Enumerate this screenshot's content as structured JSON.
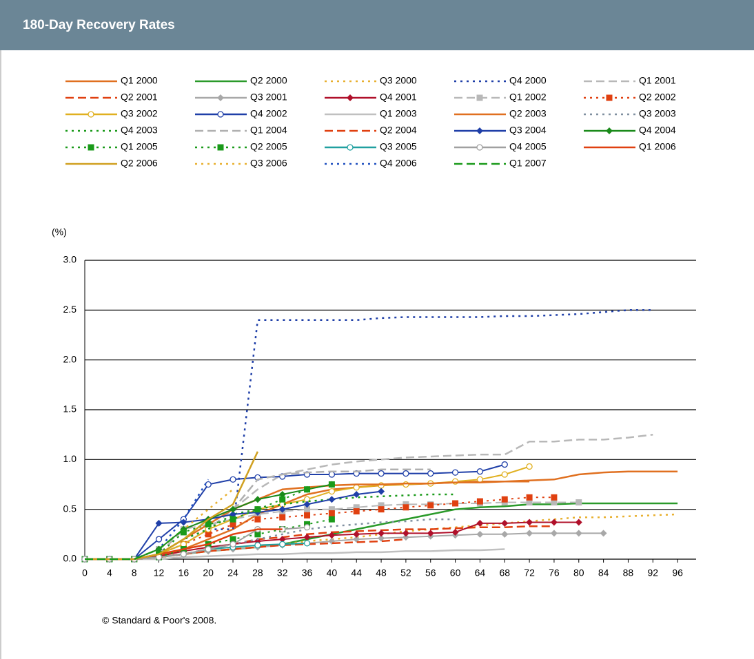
{
  "chart_data": {
    "type": "line",
    "title": "180-Day Recovery Rates",
    "y_axis_label": "(%)",
    "footnote": "© Standard & Poor's 2008.",
    "xlim": [
      0,
      99
    ],
    "xticks": [
      0,
      4,
      8,
      12,
      16,
      20,
      24,
      28,
      32,
      36,
      40,
      44,
      48,
      52,
      56,
      60,
      64,
      68,
      72,
      76,
      80,
      84,
      88,
      92,
      96
    ],
    "ylim": [
      0,
      3
    ],
    "yticks": [
      {
        "value": 0,
        "label": "0.0"
      },
      0.5,
      {
        "value": 1,
        "label": "1.0"
      },
      1.5,
      {
        "value": 2,
        "label": "2.0"
      },
      2.5,
      {
        "value": 3,
        "label": "3.0"
      }
    ],
    "grid": true,
    "x": [
      0,
      4,
      8,
      12,
      16,
      20,
      24,
      28,
      32,
      36,
      40,
      44,
      48,
      52,
      56,
      60,
      64,
      68,
      72,
      76,
      80,
      84,
      88,
      92,
      96
    ],
    "series": [
      {
        "name": "Q1 2000",
        "color": "#e07020",
        "dash": "solid",
        "values": [
          0,
          0,
          0,
          0.03,
          0.1,
          0.2,
          0.3,
          0.45,
          0.55,
          0.65,
          0.7,
          0.72,
          0.74,
          0.75,
          0.76,
          0.77,
          0.78,
          0.78,
          0.79,
          0.8,
          0.85,
          0.87,
          0.88,
          0.88,
          0.88
        ]
      },
      {
        "name": "Q2 2000",
        "color": "#2a9a2a",
        "dash": "solid",
        "values": [
          0,
          0,
          0,
          0.02,
          0.05,
          0.08,
          0.1,
          0.12,
          0.15,
          0.2,
          0.25,
          0.3,
          0.35,
          0.4,
          0.45,
          0.5,
          0.52,
          0.53,
          0.55,
          0.55,
          0.56,
          0.56,
          0.56,
          0.56,
          0.56
        ]
      },
      {
        "name": "Q3 2000",
        "color": "#e8b030",
        "dash": "dotted",
        "values": [
          0,
          0,
          0,
          0.02,
          0.05,
          0.08,
          0.1,
          0.12,
          0.15,
          0.18,
          0.2,
          0.22,
          0.25,
          0.28,
          0.3,
          0.32,
          0.34,
          0.36,
          0.38,
          0.4,
          0.42,
          0.42,
          0.43,
          0.44,
          0.45
        ]
      },
      {
        "name": "Q4 2000",
        "color": "#1f3fa8",
        "dash": "dotted",
        "values": [
          0,
          0,
          0,
          0.05,
          0.2,
          0.3,
          0.3,
          2.4,
          2.4,
          2.4,
          2.4,
          2.4,
          2.42,
          2.43,
          2.43,
          2.43,
          2.43,
          2.44,
          2.44,
          2.45,
          2.46,
          2.48,
          2.5,
          2.5,
          null
        ]
      },
      {
        "name": "Q1 2001",
        "color": "#b8b8b8",
        "dash": "dashed",
        "values": [
          0,
          0,
          0,
          0.05,
          0.15,
          0.3,
          0.5,
          0.7,
          0.85,
          0.9,
          0.95,
          0.98,
          1.0,
          1.02,
          1.03,
          1.04,
          1.05,
          1.05,
          1.18,
          1.18,
          1.2,
          1.2,
          1.22,
          1.25,
          null
        ]
      },
      {
        "name": "Q2 2001",
        "color": "#e04010",
        "dash": "dashed",
        "values": [
          0,
          0,
          0,
          0.02,
          0.05,
          0.1,
          0.15,
          0.2,
          0.22,
          0.25,
          0.27,
          0.28,
          0.29,
          0.3,
          0.3,
          0.31,
          0.32,
          0.32,
          0.33,
          0.33,
          null,
          null,
          null,
          null,
          null
        ]
      },
      {
        "name": "Q3 2001",
        "color": "#a8a8a8",
        "dash": "solid",
        "marker": "diamond",
        "values": [
          0,
          0,
          0,
          0.02,
          0.05,
          0.08,
          0.1,
          0.12,
          0.14,
          0.16,
          0.18,
          0.2,
          0.21,
          0.22,
          0.23,
          0.24,
          0.25,
          0.25,
          0.26,
          0.26,
          0.26,
          0.26,
          null,
          null,
          null
        ]
      },
      {
        "name": "Q4 2001",
        "color": "#b0102a",
        "dash": "solid",
        "marker": "diamond",
        "values": [
          0,
          0,
          0,
          0.03,
          0.08,
          0.12,
          0.15,
          0.18,
          0.2,
          0.22,
          0.24,
          0.25,
          0.26,
          0.26,
          0.26,
          0.27,
          0.36,
          0.36,
          0.37,
          0.37,
          0.37,
          null,
          null,
          null,
          null
        ]
      },
      {
        "name": "Q1 2002",
        "color": "#b8b8b8",
        "dash": "dashed",
        "marker": "square",
        "values": [
          0,
          0,
          0,
          0.1,
          0.3,
          0.35,
          0.4,
          0.45,
          0.48,
          0.5,
          0.5,
          0.52,
          0.54,
          0.55,
          0.55,
          0.56,
          0.56,
          0.57,
          0.57,
          0.57,
          0.57,
          null,
          null,
          null,
          null
        ]
      },
      {
        "name": "Q2 2002",
        "color": "#e04010",
        "dash": "dotted",
        "marker": "square",
        "values": [
          0,
          0,
          0,
          0.05,
          0.15,
          0.25,
          0.35,
          0.4,
          0.42,
          0.44,
          0.46,
          0.48,
          0.5,
          0.52,
          0.54,
          0.56,
          0.58,
          0.6,
          0.62,
          0.62,
          null,
          null,
          null,
          null,
          null
        ]
      },
      {
        "name": "Q3 2002",
        "color": "#e0b020",
        "dash": "solid",
        "marker": "circle",
        "values": [
          0,
          0,
          0,
          0.05,
          0.15,
          0.3,
          0.4,
          0.5,
          0.55,
          0.6,
          0.68,
          0.72,
          0.74,
          0.75,
          0.76,
          0.78,
          0.8,
          0.85,
          0.93,
          null,
          null,
          null,
          null,
          null,
          null
        ]
      },
      {
        "name": "Q4 2002",
        "color": "#1f3fa8",
        "dash": "solid",
        "marker": "circle",
        "values": [
          0,
          0,
          0,
          0.2,
          0.4,
          0.75,
          0.8,
          0.82,
          0.83,
          0.85,
          0.85,
          0.86,
          0.86,
          0.86,
          0.86,
          0.87,
          0.88,
          0.95,
          null,
          null,
          null,
          null,
          null,
          null,
          null
        ]
      },
      {
        "name": "Q1 2003",
        "color": "#c0c0c0",
        "dash": "solid",
        "values": [
          0,
          0,
          0,
          0,
          0.02,
          0.03,
          0.04,
          0.05,
          0.05,
          0.06,
          0.06,
          0.07,
          0.07,
          0.08,
          0.08,
          0.09,
          0.09,
          0.1,
          null,
          null,
          null,
          null,
          null,
          null,
          null
        ]
      },
      {
        "name": "Q2 2003",
        "color": "#e07020",
        "dash": "solid",
        "values": [
          0,
          0,
          0,
          0.05,
          0.2,
          0.35,
          0.5,
          0.6,
          0.7,
          0.72,
          0.74,
          0.75,
          0.75,
          0.76,
          0.76,
          0.77,
          0.77,
          0.78,
          0.78,
          null,
          null,
          null,
          null,
          null,
          null
        ]
      },
      {
        "name": "Q3 2003",
        "color": "#8090a0",
        "dash": "dotted",
        "values": [
          0,
          0,
          0,
          0.02,
          0.05,
          0.1,
          0.15,
          0.2,
          0.25,
          0.3,
          0.33,
          0.35,
          0.37,
          0.38,
          0.4,
          0.4,
          null,
          null,
          null,
          null,
          null,
          null,
          null,
          null,
          null
        ]
      },
      {
        "name": "Q4 2003",
        "color": "#1a9a1a",
        "dash": "dotted",
        "values": [
          0,
          0,
          0,
          0.05,
          0.2,
          0.3,
          0.45,
          0.5,
          0.55,
          0.58,
          0.6,
          0.62,
          0.63,
          0.64,
          0.65,
          0.65,
          null,
          null,
          null,
          null,
          null,
          null,
          null,
          null,
          null
        ]
      },
      {
        "name": "Q1 2004",
        "color": "#b0b0b0",
        "dash": "dashed",
        "values": [
          0,
          0,
          0,
          0.05,
          0.3,
          0.4,
          0.5,
          0.8,
          0.85,
          0.87,
          0.88,
          0.88,
          0.9,
          0.9,
          0.9,
          null,
          null,
          null,
          null,
          null,
          null,
          null,
          null,
          null,
          null
        ]
      },
      {
        "name": "Q2 2004",
        "color": "#e04010",
        "dash": "dashed",
        "values": [
          0,
          0,
          0,
          0.02,
          0.05,
          0.08,
          0.1,
          0.12,
          0.14,
          0.15,
          0.16,
          0.17,
          0.18,
          0.2,
          null,
          null,
          null,
          null,
          null,
          null,
          null,
          null,
          null,
          null,
          null
        ]
      },
      {
        "name": "Q3 2004",
        "color": "#1f3fa8",
        "dash": "solid",
        "marker": "diamond",
        "values": [
          0,
          0,
          0,
          0.36,
          0.37,
          0.4,
          0.45,
          0.47,
          0.5,
          0.55,
          0.6,
          0.65,
          0.68,
          null,
          null,
          null,
          null,
          null,
          null,
          null,
          null,
          null,
          null,
          null,
          null
        ]
      },
      {
        "name": "Q4 2004",
        "color": "#1a8a1a",
        "dash": "solid",
        "marker": "diamond",
        "values": [
          0,
          0,
          0,
          0.1,
          0.3,
          0.4,
          0.5,
          0.6,
          0.65,
          0.7,
          0.75,
          null,
          null,
          null,
          null,
          null,
          null,
          null,
          null,
          null,
          null,
          null,
          null,
          null,
          null
        ]
      },
      {
        "name": "Q1 2005",
        "color": "#1a9a1a",
        "dash": "dotted",
        "marker": "square",
        "values": [
          0,
          0,
          0,
          0.05,
          0.27,
          0.35,
          0.4,
          0.5,
          0.6,
          0.7,
          0.75,
          null,
          null,
          null,
          null,
          null,
          null,
          null,
          null,
          null,
          null,
          null,
          null,
          null,
          null
        ]
      },
      {
        "name": "Q2 2005",
        "color": "#1a9a1a",
        "dash": "dotted",
        "marker": "square",
        "values": [
          0,
          0,
          0,
          0.02,
          0.1,
          0.15,
          0.2,
          0.25,
          0.3,
          0.35,
          0.4,
          null,
          null,
          null,
          null,
          null,
          null,
          null,
          null,
          null,
          null,
          null,
          null,
          null,
          null
        ]
      },
      {
        "name": "Q3 2005",
        "color": "#20a0a0",
        "dash": "solid",
        "marker": "circle",
        "values": [
          0,
          0,
          0,
          0.02,
          0.05,
          0.1,
          0.12,
          0.14,
          0.15,
          0.16,
          null,
          null,
          null,
          null,
          null,
          null,
          null,
          null,
          null,
          null,
          null,
          null,
          null,
          null,
          null
        ]
      },
      {
        "name": "Q4 2005",
        "color": "#a0a0a0",
        "dash": "solid",
        "marker": "circle",
        "values": [
          0,
          0,
          0,
          0.02,
          0.05,
          0.1,
          0.15,
          0.3,
          0.3,
          0.32,
          null,
          null,
          null,
          null,
          null,
          null,
          null,
          null,
          null,
          null,
          null,
          null,
          null,
          null,
          null
        ]
      },
      {
        "name": "Q1 2006",
        "color": "#e04010",
        "dash": "solid",
        "values": [
          0,
          0,
          0,
          0.05,
          0.1,
          0.15,
          0.25,
          0.3,
          0.3,
          null,
          null,
          null,
          null,
          null,
          null,
          null,
          null,
          null,
          null,
          null,
          null,
          null,
          null,
          null,
          null
        ]
      },
      {
        "name": "Q2 2006",
        "color": "#d0a020",
        "dash": "solid",
        "values": [
          0,
          0,
          0,
          0.05,
          0.2,
          0.4,
          0.55,
          1.08,
          null,
          null,
          null,
          null,
          null,
          null,
          null,
          null,
          null,
          null,
          null,
          null,
          null,
          null,
          null,
          null,
          null
        ]
      },
      {
        "name": "Q3 2006",
        "color": "#e8b030",
        "dash": "dotted",
        "values": [
          0,
          0,
          0,
          0.1,
          0.3,
          0.5,
          0.7,
          null,
          null,
          null,
          null,
          null,
          null,
          null,
          null,
          null,
          null,
          null,
          null,
          null,
          null,
          null,
          null,
          null,
          null
        ]
      },
      {
        "name": "Q4 2006",
        "color": "#2050c0",
        "dash": "dotted",
        "values": [
          0,
          0,
          0,
          0.1,
          0.4,
          0.8,
          null,
          null,
          null,
          null,
          null,
          null,
          null,
          null,
          null,
          null,
          null,
          null,
          null,
          null,
          null,
          null,
          null,
          null,
          null
        ]
      },
      {
        "name": "Q1 2007",
        "color": "#1a9a1a",
        "dash": "dashed",
        "values": [
          0,
          0,
          0,
          0.1,
          0.3,
          null,
          null,
          null,
          null,
          null,
          null,
          null,
          null,
          null,
          null,
          null,
          null,
          null,
          null,
          null,
          null,
          null,
          null,
          null,
          null
        ]
      }
    ]
  }
}
